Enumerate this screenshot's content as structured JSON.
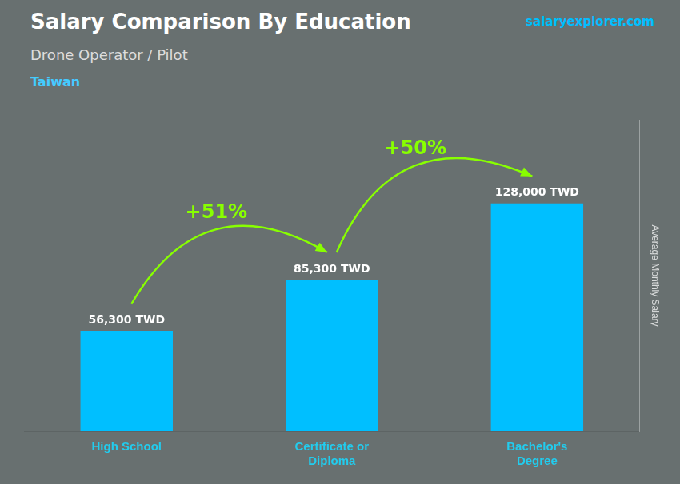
{
  "chart_data": {
    "type": "bar",
    "title": "Salary Comparison By Education",
    "subtitle": "Drone Operator / Pilot",
    "y_label": "Average Monthly Salary",
    "categories": [
      "High School",
      "Certificate or\nDiploma",
      "Bachelor's\nDegree"
    ],
    "values": [
      56300,
      85300,
      128000
    ],
    "value_labels": [
      "56,300 TWD",
      "85,300 TWD",
      "128,000 TWD"
    ],
    "data_labels": true,
    "color": "#00BFFF",
    "ylim": [
      0,
      175000
    ],
    "yticks": [],
    "tick_labels": "x",
    "grid": false,
    "annotations": [
      {
        "text": "Taiwan"
      },
      {
        "text": "salaryexplorer.com"
      },
      {
        "text": "+51%",
        "between": [
          "High School",
          "Certificate or\nDiploma"
        ],
        "color": "#88FF00"
      },
      {
        "text": "+50%",
        "between": [
          "Certificate or\nDiploma",
          "Bachelor's\nDegree"
        ],
        "color": "#88FF00"
      }
    ]
  }
}
